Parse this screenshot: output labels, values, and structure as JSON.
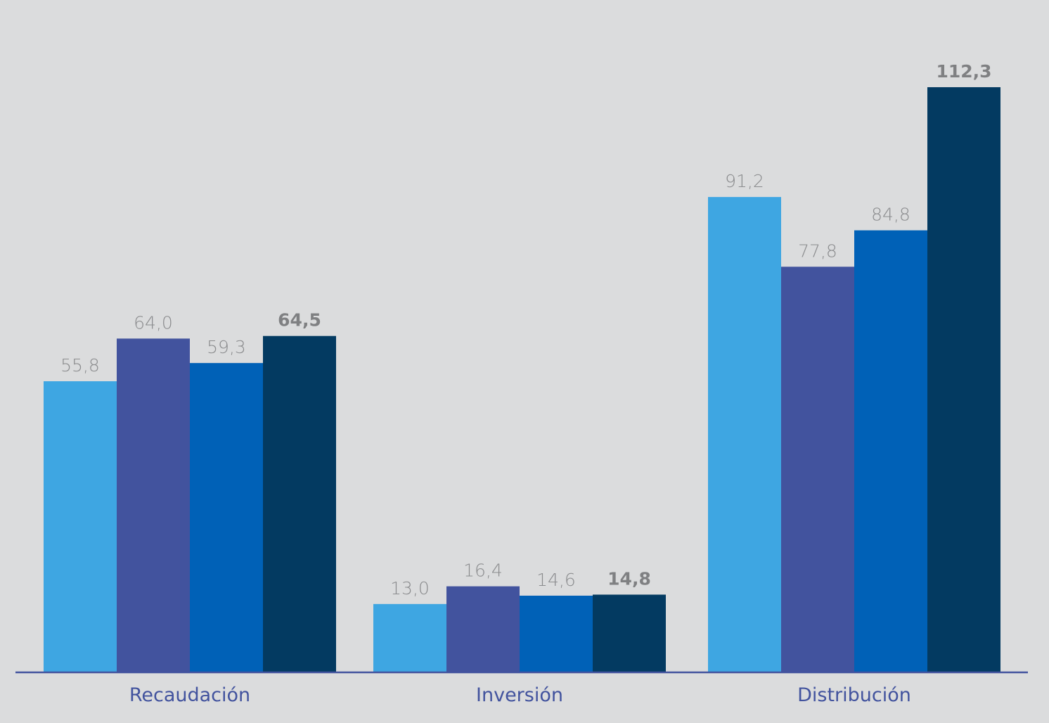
{
  "chart_data": {
    "type": "bar",
    "categories": [
      "Recaudación",
      "Inversión",
      "Distribución"
    ],
    "series": [
      {
        "values": [
          55.8,
          13.0,
          91.2
        ],
        "labels": [
          "55,8",
          "13,0",
          "91,2"
        ],
        "color": "#3ea6e2",
        "emphasis": false
      },
      {
        "values": [
          64.0,
          16.4,
          77.8
        ],
        "labels": [
          "64,0",
          "16,4",
          "77,8"
        ],
        "color": "#42539e",
        "emphasis": false
      },
      {
        "values": [
          59.3,
          14.6,
          84.8
        ],
        "labels": [
          "59,3",
          "14,6",
          "84,8"
        ],
        "color": "#0061b7",
        "emphasis": false
      },
      {
        "values": [
          64.5,
          14.8,
          112.3
        ],
        "labels": [
          "64,5",
          "14,8",
          "112,3"
        ],
        "color": "#033a61",
        "emphasis": true
      }
    ],
    "ylim": [
      0,
      120
    ],
    "grid": false,
    "legend": "none",
    "title": "",
    "xlabel": "",
    "ylabel": ""
  },
  "colors": {
    "background": "#dbdcdd",
    "axis": "#42539e",
    "category_label": "#42539e",
    "value_label": "#8a8b8d",
    "value_label_emphasis": "#7f8082"
  }
}
